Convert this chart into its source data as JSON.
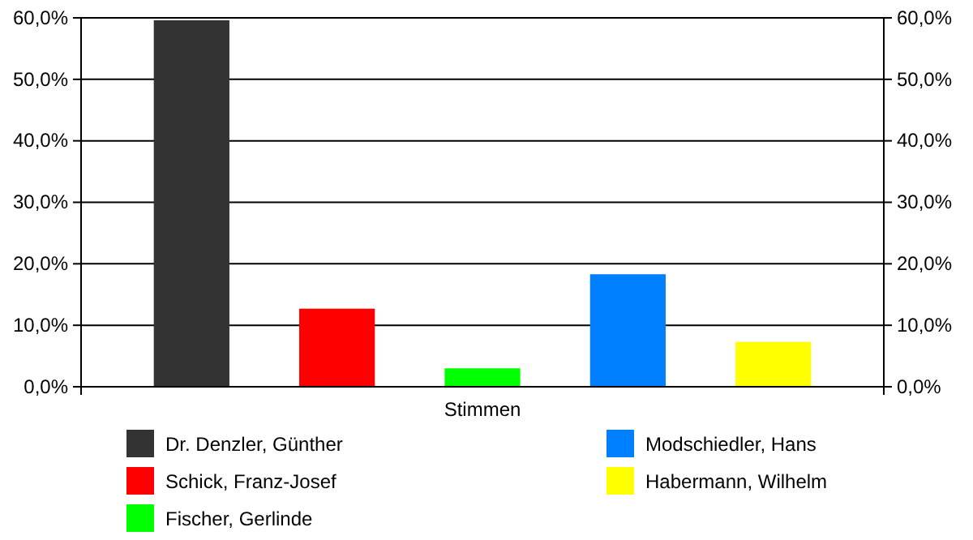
{
  "chart_data": {
    "type": "bar",
    "categories": [
      "Stimmen"
    ],
    "series": [
      {
        "name": "Dr. Denzler, Günther",
        "color": "#333333",
        "values": [
          59.6
        ]
      },
      {
        "name": "Schick, Franz-Josef",
        "color": "#ff0000",
        "values": [
          12.7
        ]
      },
      {
        "name": "Fischer, Gerlinde",
        "color": "#00ff00",
        "values": [
          3.0
        ]
      },
      {
        "name": "Modschiedler, Hans",
        "color": "#0080ff",
        "values": [
          18.3
        ]
      },
      {
        "name": "Habermann, Wilhelm",
        "color": "#ffff00",
        "values": [
          7.3
        ]
      }
    ],
    "ylim": [
      0,
      60
    ],
    "yticks": [
      {
        "value": 0,
        "label": "0,0%"
      },
      {
        "value": 10,
        "label": "10,0%"
      },
      {
        "value": 20,
        "label": "20,0%"
      },
      {
        "value": 30,
        "label": "30,0%"
      },
      {
        "value": 40,
        "label": "40,0%"
      },
      {
        "value": 50,
        "label": "50,0%"
      },
      {
        "value": 60,
        "label": "60,0%"
      }
    ],
    "grid": "y",
    "legend": "bottom"
  }
}
